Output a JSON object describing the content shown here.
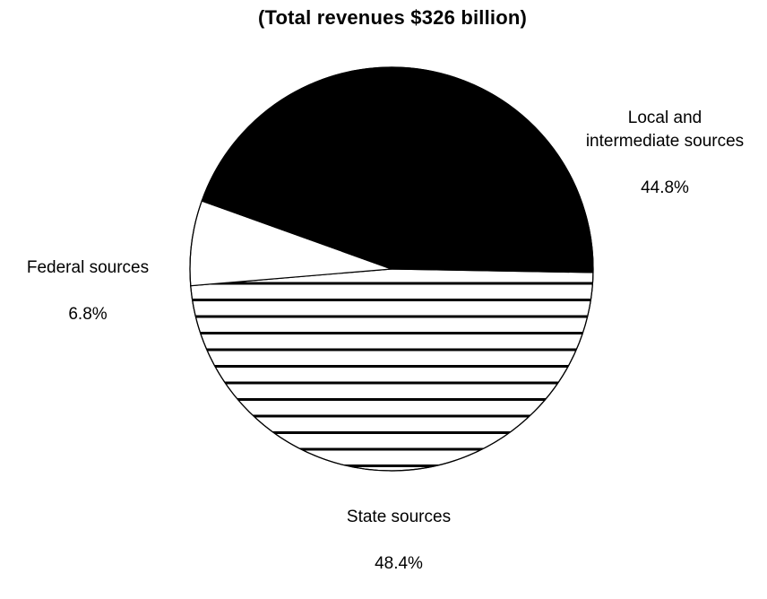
{
  "chart_data": {
    "type": "pie",
    "title": "(Total revenues $326 billion)",
    "slices": [
      {
        "name": "Local and intermediate sources",
        "label": "Local and\nintermediate sources",
        "value": 44.8,
        "value_label": "44.8%",
        "fill": "#000000",
        "pattern": "solid"
      },
      {
        "name": "State sources",
        "label": "State sources",
        "value": 48.4,
        "value_label": "48.4%",
        "fill": "#ffffff",
        "pattern": "horizontal-stripes"
      },
      {
        "name": "Federal sources",
        "label": "Federal sources",
        "value": 6.8,
        "value_label": "6.8%",
        "fill": "#ffffff",
        "pattern": "none"
      }
    ],
    "legend": "none"
  }
}
